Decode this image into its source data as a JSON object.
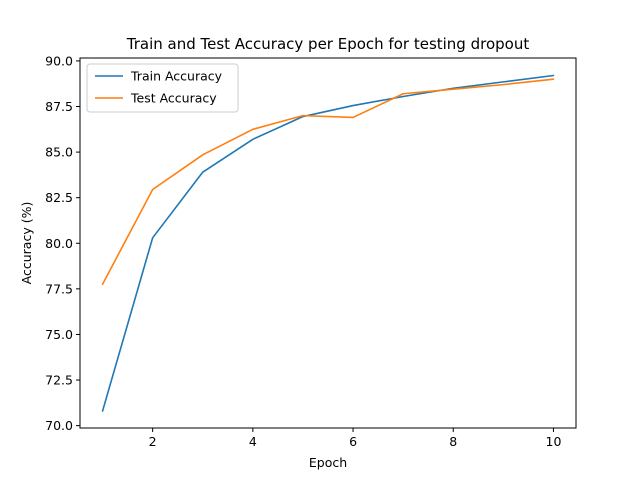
{
  "chart_data": {
    "type": "line",
    "title": "Train and Test Accuracy per Epoch for testing dropout",
    "xlabel": "Epoch",
    "ylabel": "Accuracy (%)",
    "x": [
      1,
      2,
      3,
      4,
      5,
      6,
      7,
      8,
      9,
      10
    ],
    "xlim": [
      0.55,
      10.45
    ],
    "ylim": [
      69.87,
      90.16
    ],
    "xticks": [
      2,
      4,
      6,
      8,
      10
    ],
    "xtick_labels": [
      "2",
      "4",
      "6",
      "8",
      "10"
    ],
    "yticks": [
      70.0,
      72.5,
      75.0,
      77.5,
      80.0,
      82.5,
      85.0,
      87.5,
      90.0
    ],
    "ytick_labels": [
      "70.0",
      "72.5",
      "75.0",
      "77.5",
      "80.0",
      "82.5",
      "85.0",
      "87.5",
      "90.0"
    ],
    "grid": false,
    "legend_position": "top-left",
    "series": [
      {
        "name": "Train Accuracy",
        "color": "#1f77b4",
        "values": [
          70.8,
          80.3,
          83.9,
          85.7,
          86.95,
          87.55,
          88.05,
          88.5,
          88.85,
          89.2
        ]
      },
      {
        "name": "Test Accuracy",
        "color": "#ff7f0e",
        "values": [
          77.75,
          82.95,
          84.85,
          86.25,
          87.0,
          86.9,
          88.2,
          88.45,
          88.7,
          89.0
        ]
      }
    ]
  }
}
